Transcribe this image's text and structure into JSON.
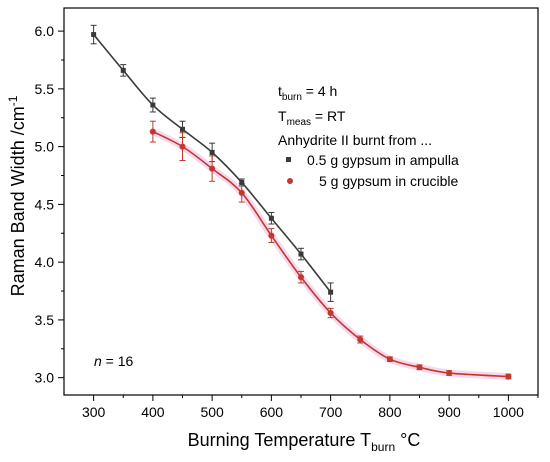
{
  "chart_data": {
    "type": "scatter",
    "xlabel": "Burning Temperature",
    "xlabel_symbol": "T",
    "xlabel_sub": "burn",
    "xlabel_unit": "°C",
    "ylabel": "Raman Band Width /cm",
    "ylabel_sup": "-1",
    "xlim": [
      250,
      1050
    ],
    "ylim": [
      2.85,
      6.2
    ],
    "xticks": [
      300,
      400,
      500,
      600,
      700,
      800,
      900,
      1000
    ],
    "xtick_labels": [
      "300",
      "400",
      "500",
      "600",
      "700",
      "800",
      "900",
      "1000"
    ],
    "yticks": [
      3.0,
      3.5,
      4.0,
      4.5,
      5.0,
      5.5,
      6.0
    ],
    "ytick_labels": [
      "3.0",
      "3.5",
      "4.0",
      "4.5",
      "5.0",
      "5.5",
      "6.0"
    ],
    "annotations": {
      "tburn": {
        "main": "t",
        "sub": "burn",
        "rest": " = 4 h"
      },
      "tmeas": {
        "main": "T",
        "sub": "meas",
        "rest": " = RT"
      },
      "heading": "Anhydrite II burnt from ...",
      "n_italic": "n",
      "n_rest": " = 16"
    },
    "legend_position": "top-right",
    "series": [
      {
        "name": "0.5 g gypsum in ampulla",
        "color": "#3a3a3a",
        "marker": "square",
        "x": [
          300,
          350,
          400,
          450,
          500,
          550,
          600,
          650,
          700
        ],
        "y": [
          5.97,
          5.66,
          5.36,
          5.15,
          4.95,
          4.69,
          4.38,
          4.07,
          3.74
        ],
        "err": [
          0.08,
          0.05,
          0.06,
          0.07,
          0.08,
          0.03,
          0.05,
          0.05,
          0.08
        ]
      },
      {
        "name": "5 g gypsum in crucible",
        "color": "#c0392b",
        "marker": "circle",
        "x": [
          400,
          450,
          500,
          550,
          600,
          650,
          700,
          750,
          800,
          850,
          900,
          1000
        ],
        "y": [
          5.13,
          5.0,
          4.81,
          4.6,
          4.23,
          3.87,
          3.56,
          3.33,
          3.16,
          3.09,
          3.04,
          3.01
        ],
        "err": [
          0.09,
          0.12,
          0.11,
          0.08,
          0.06,
          0.05,
          0.04,
          0.03,
          0.02,
          0.02,
          0.02,
          0.02
        ]
      }
    ]
  }
}
